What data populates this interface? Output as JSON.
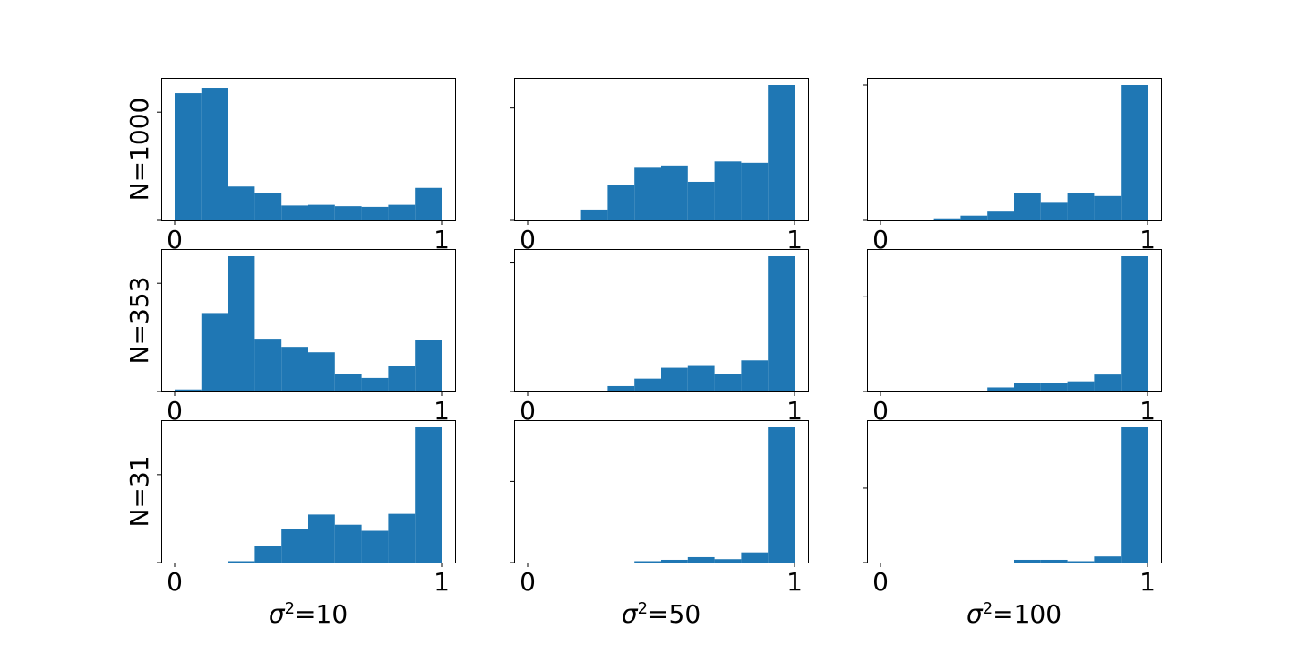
{
  "chart_data": {
    "type": "histogram-grid",
    "bar_color": "#1f77b4",
    "xlim": [
      0,
      1
    ],
    "x_tick_labels": [
      "0",
      "1"
    ],
    "bins": 10,
    "bin_edges": [
      0,
      0.1,
      0.2,
      0.3,
      0.4,
      0.5,
      0.6,
      0.7,
      0.8,
      0.9,
      1.0
    ],
    "row_labels": [
      "N=1000",
      "N=353",
      "N=31"
    ],
    "col_labels": [
      {
        "sym": "σ",
        "sup": "2",
        "rest": "=10"
      },
      {
        "sym": "σ",
        "sup": "2",
        "rest": "=50"
      },
      {
        "sym": "σ",
        "sup": "2",
        "rest": "=100"
      }
    ],
    "y_tick_labels_shown": false,
    "panels": [
      [
        {
          "row": "N=1000",
          "col": "σ2=10",
          "values": [
            0.94,
            0.98,
            0.25,
            0.2,
            0.11,
            0.115,
            0.105,
            0.1,
            0.115,
            0.24
          ]
        },
        {
          "row": "N=1000",
          "col": "σ2=50",
          "values": [
            0,
            0,
            0.08,
            0.26,
            0.395,
            0.405,
            0.285,
            0.435,
            0.425,
            1.0
          ]
        },
        {
          "row": "N=1000",
          "col": "σ2=100",
          "values": [
            0,
            0,
            0.015,
            0.035,
            0.065,
            0.2,
            0.13,
            0.2,
            0.18,
            1.0
          ]
        }
      ],
      [
        {
          "row": "N=353",
          "col": "σ2=10",
          "values": [
            0.015,
            0.58,
            1.0,
            0.39,
            0.33,
            0.29,
            0.13,
            0.1,
            0.19,
            0.38
          ]
        },
        {
          "row": "N=353",
          "col": "σ2=50",
          "values": [
            0,
            0,
            0,
            0.04,
            0.095,
            0.175,
            0.195,
            0.13,
            0.23,
            1.0
          ]
        },
        {
          "row": "N=353",
          "col": "σ2=100",
          "values": [
            0,
            0,
            0,
            0,
            0.03,
            0.065,
            0.06,
            0.075,
            0.125,
            1.0
          ]
        }
      ],
      [
        {
          "row": "N=31",
          "col": "σ2=10",
          "values": [
            0,
            0,
            0.01,
            0.12,
            0.25,
            0.355,
            0.28,
            0.235,
            0.36,
            1.0
          ]
        },
        {
          "row": "N=31",
          "col": "σ2=50",
          "values": [
            0,
            0,
            0,
            0,
            0.01,
            0.02,
            0.04,
            0.025,
            0.075,
            1.0
          ]
        },
        {
          "row": "N=31",
          "col": "σ2=100",
          "values": [
            0,
            0,
            0,
            0,
            0,
            0.02,
            0.02,
            0.01,
            0.045,
            1.0
          ]
        }
      ]
    ],
    "y_ticks": [
      [
        [
          0,
          0.8
        ],
        [
          0,
          0.83
        ],
        [
          0,
          1.0
        ]
      ],
      [
        [
          0,
          0.8
        ],
        [
          0,
          0.95
        ],
        [
          0,
          0.7
        ]
      ],
      [
        [
          0,
          0.65
        ],
        [
          0,
          0.6
        ],
        [
          0,
          0.55
        ]
      ]
    ]
  }
}
